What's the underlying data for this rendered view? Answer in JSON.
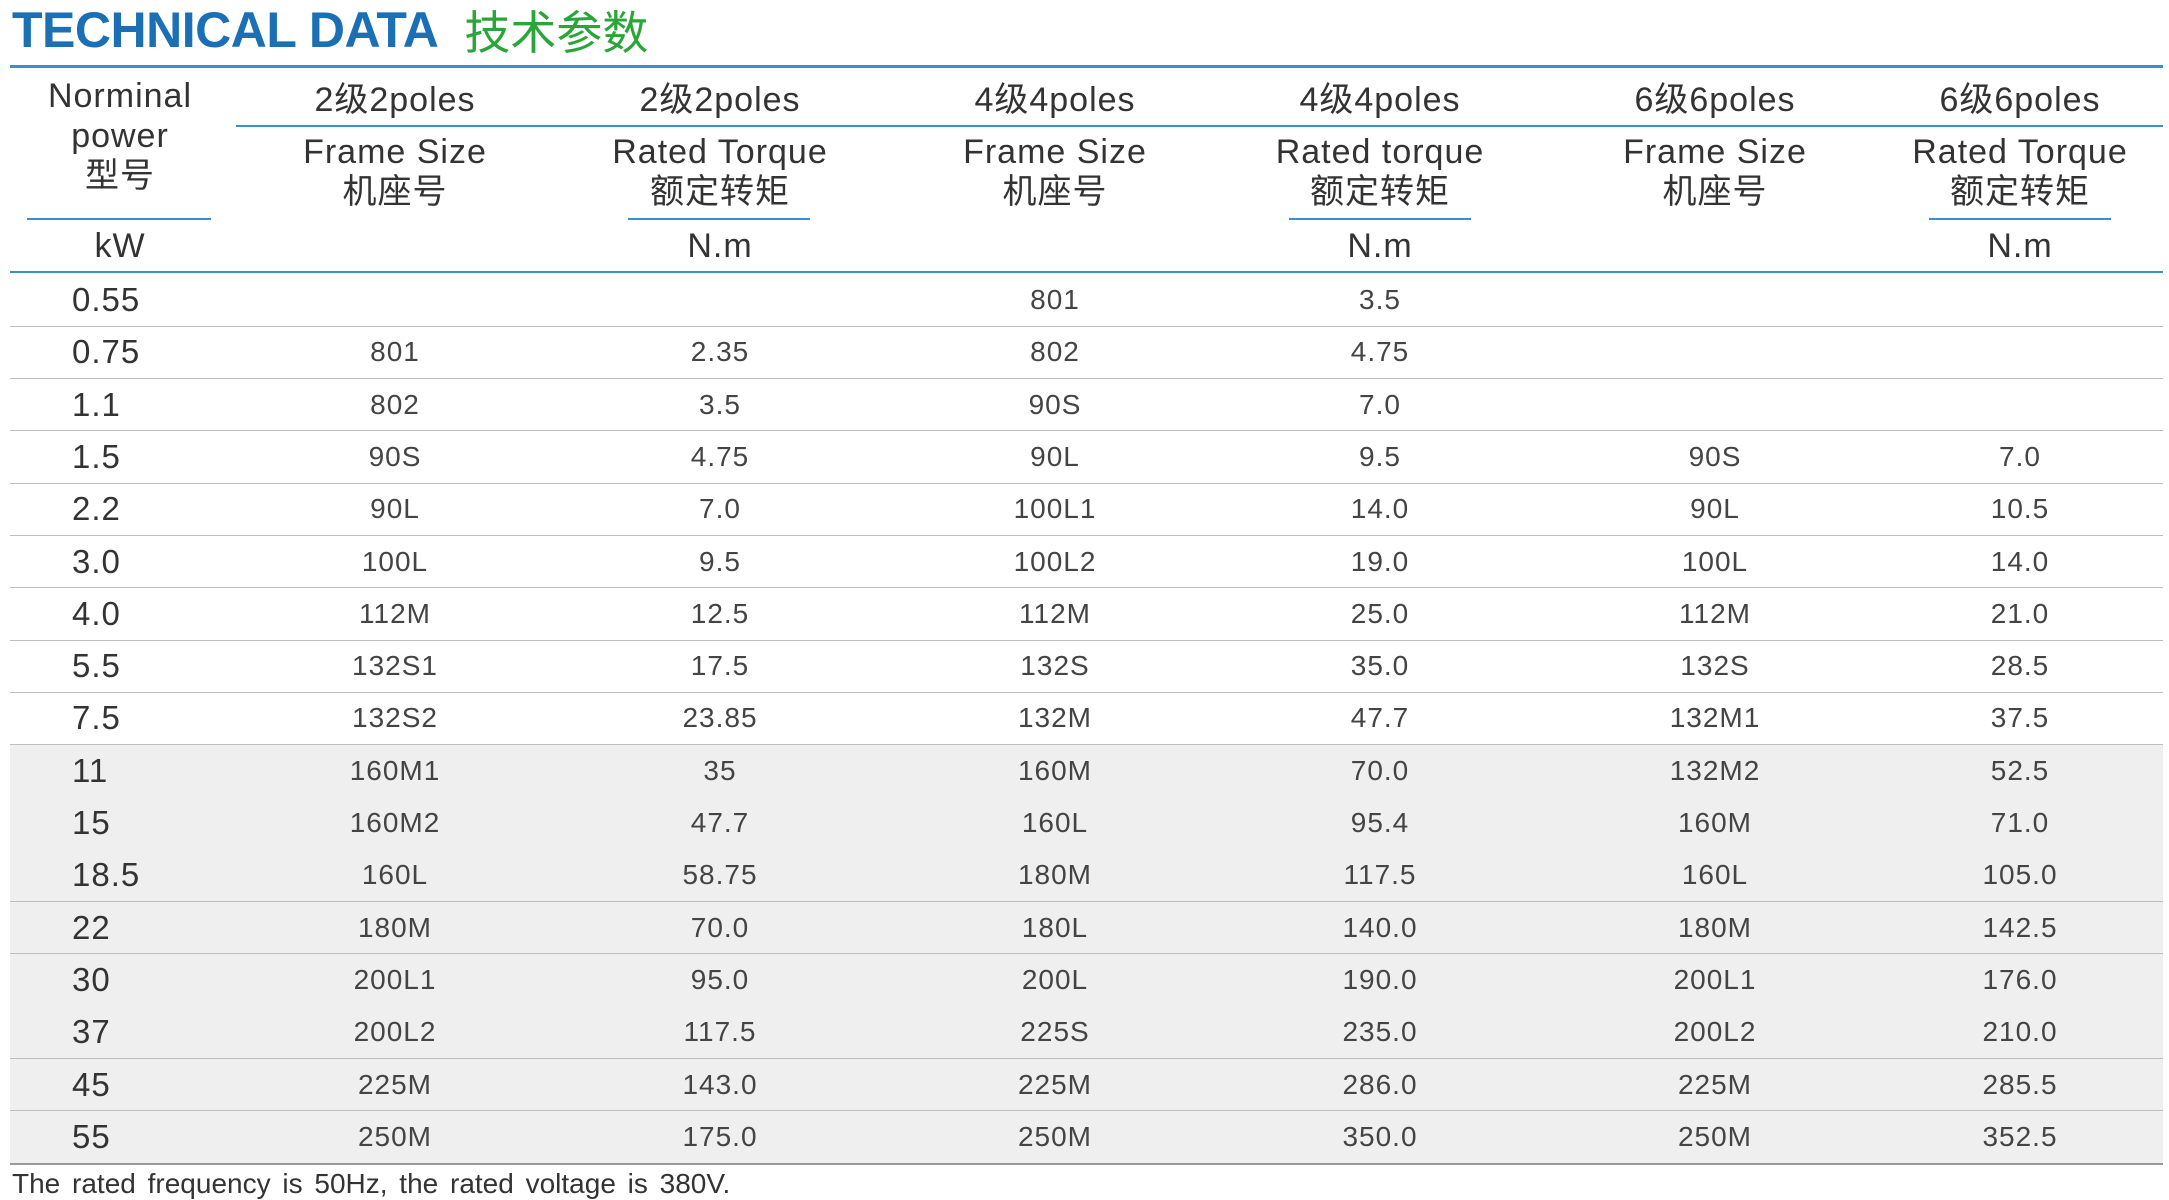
{
  "title": {
    "en": "TECHNICAL DATA",
    "zh": "技术参数"
  },
  "header": {
    "power": {
      "line1": "Norminal",
      "line2": "power",
      "line3": "型号",
      "unit": "kW"
    },
    "groups": [
      {
        "poles": "2级2poles",
        "line1": "Frame Size",
        "line2": "机座号",
        "unit": ""
      },
      {
        "poles": "2级2poles",
        "line1": "Rated Torque",
        "line2": "额定转矩",
        "unit": "N.m"
      },
      {
        "poles": "4级4poles",
        "line1": "Frame Size",
        "line2": "机座号",
        "unit": ""
      },
      {
        "poles": "4级4poles",
        "line1": "Rated torque",
        "line2": "额定转矩",
        "unit": "N.m"
      },
      {
        "poles": "6级6poles",
        "line1": "Frame Size",
        "line2": "机座号",
        "unit": ""
      },
      {
        "poles": "6级6poles",
        "line1": "Rated Torque",
        "line2": "额定转矩",
        "unit": "N.m"
      }
    ]
  },
  "rows": [
    {
      "kw": "0.55",
      "f2": "",
      "t2": "",
      "f4": "801",
      "t4": "3.5",
      "f6": "",
      "t6": ""
    },
    {
      "kw": "0.75",
      "f2": "801",
      "t2": "2.35",
      "f4": "802",
      "t4": "4.75",
      "f6": "",
      "t6": ""
    },
    {
      "kw": "1.1",
      "f2": "802",
      "t2": "3.5",
      "f4": "90S",
      "t4": "7.0",
      "f6": "",
      "t6": ""
    },
    {
      "kw": "1.5",
      "f2": "90S",
      "t2": "4.75",
      "f4": "90L",
      "t4": "9.5",
      "f6": "90S",
      "t6": "7.0"
    },
    {
      "kw": "2.2",
      "f2": "90L",
      "t2": "7.0",
      "f4": "100L1",
      "t4": "14.0",
      "f6": "90L",
      "t6": "10.5"
    },
    {
      "kw": "3.0",
      "f2": "100L",
      "t2": "9.5",
      "f4": "100L2",
      "t4": "19.0",
      "f6": "100L",
      "t6": "14.0"
    },
    {
      "kw": "4.0",
      "f2": "112M",
      "t2": "12.5",
      "f4": "112M",
      "t4": "25.0",
      "f6": "112M",
      "t6": "21.0"
    },
    {
      "kw": "5.5",
      "f2": "132S1",
      "t2": "17.5",
      "f4": "132S",
      "t4": "35.0",
      "f6": "132S",
      "t6": "28.5"
    },
    {
      "kw": "7.5",
      "f2": "132S2",
      "t2": "23.85",
      "f4": "132M",
      "t4": "47.7",
      "f6": "132M1",
      "t6": "37.5"
    },
    {
      "kw": "11",
      "f2": "160M1",
      "t2": "35",
      "f4": "160M",
      "t4": "70.0",
      "f6": "132M2",
      "t6": "52.5"
    },
    {
      "kw": "15",
      "f2": "160M2",
      "t2": "47.7",
      "f4": "160L",
      "t4": "95.4",
      "f6": "160M",
      "t6": "71.0"
    },
    {
      "kw": "18.5",
      "f2": "160L",
      "t2": "58.75",
      "f4": "180M",
      "t4": "117.5",
      "f6": "160L",
      "t6": "105.0"
    },
    {
      "kw": "22",
      "f2": "180M",
      "t2": "70.0",
      "f4": "180L",
      "t4": "140.0",
      "f6": "180M",
      "t6": "142.5"
    },
    {
      "kw": "30",
      "f2": "200L1",
      "t2": "95.0",
      "f4": "200L",
      "t4": "190.0",
      "f6": "200L1",
      "t6": "176.0"
    },
    {
      "kw": "37",
      "f2": "200L2",
      "t2": "117.5",
      "f4": "225S",
      "t4": "235.0",
      "f6": "200L2",
      "t6": "210.0"
    },
    {
      "kw": "45",
      "f2": "225M",
      "t2": "143.0",
      "f4": "225M",
      "t4": "286.0",
      "f6": "225M",
      "t6": "285.5"
    },
    {
      "kw": "55",
      "f2": "250M",
      "t2": "175.0",
      "f4": "250M",
      "t4": "350.0",
      "f6": "250M",
      "t6": "352.5"
    }
  ],
  "footnote": "The rated frequency is 50Hz, the rated voltage is 380V."
}
